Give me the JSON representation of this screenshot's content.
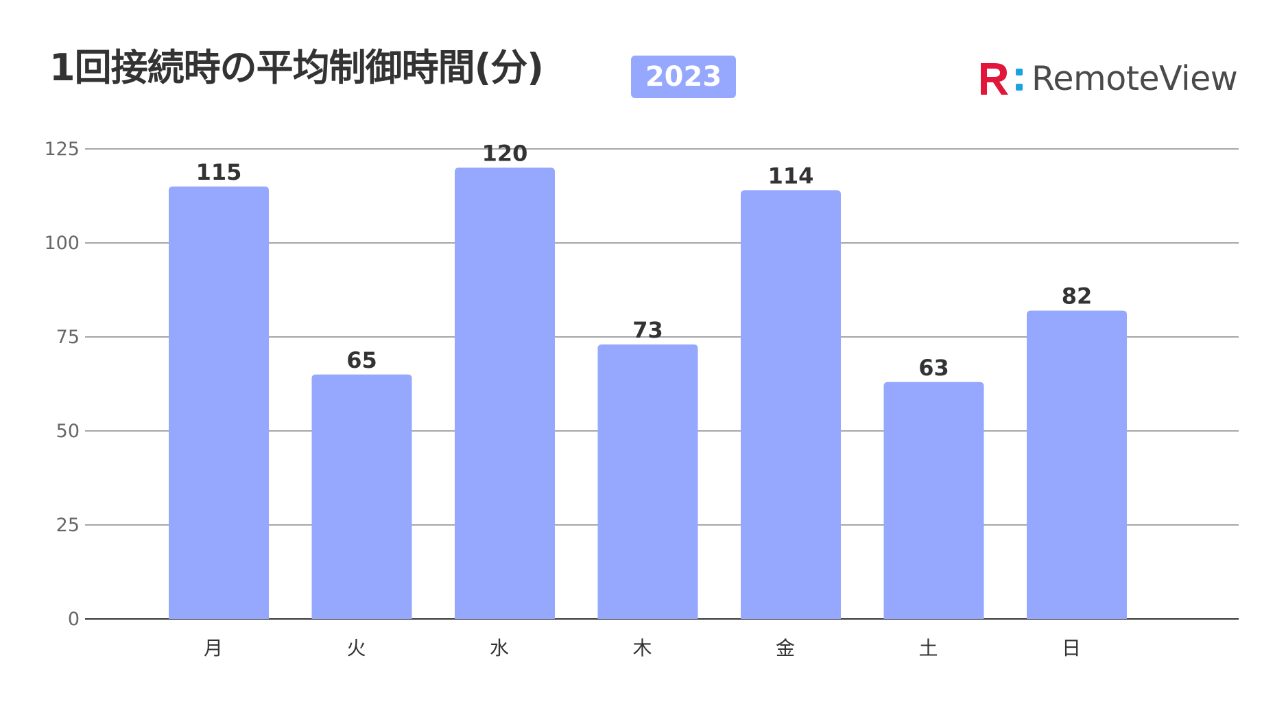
{
  "header": {
    "title": "1回接続時の平均制御時間(分)",
    "year_badge": "2023",
    "logo_text": "RemoteView"
  },
  "colors": {
    "bar": "#96a8fd",
    "badge": "#96a8fd",
    "logo_red": "#e2163a",
    "logo_blue": "#1aa3e0",
    "grid": "#888888"
  },
  "chart_data": {
    "type": "bar",
    "categories": [
      "月",
      "火",
      "水",
      "木",
      "金",
      "土",
      "日"
    ],
    "values": [
      115,
      65,
      120,
      73,
      114,
      63,
      82
    ],
    "data_labels": [
      "115",
      "65",
      "120",
      "73",
      "114",
      "63",
      "82"
    ],
    "title": "1回接続時の平均制御時間(分)",
    "xlabel": "",
    "ylabel": "",
    "ylim": [
      0,
      125
    ],
    "yticks": [
      "0",
      "25",
      "50",
      "75",
      "100",
      "125"
    ],
    "grid": true,
    "legend": "none"
  }
}
